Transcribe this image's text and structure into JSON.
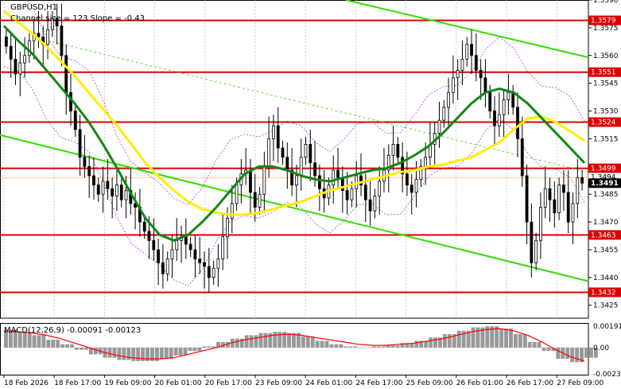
{
  "chart_data": {
    "type": "candlestick",
    "title": "GBPUSD,H1",
    "subtitle": "Channel size = 123 Slope = -0.43",
    "y_range": [
      1.3418,
      1.359
    ],
    "y_ticks": [
      1.359,
      1.3575,
      1.356,
      1.3545,
      1.353,
      1.3515,
      1.35,
      1.3485,
      1.347,
      1.3455,
      1.344,
      1.3425
    ],
    "x_labels": [
      "18 Feb 2026",
      "18 Feb 17:00",
      "19 Feb 09:00",
      "20 Feb 01:00",
      "20 Feb 17:00",
      "23 Feb 09:00",
      "24 Feb 01:00",
      "24 Feb 17:00",
      "25 Feb 09:00",
      "26 Feb 01:00",
      "26 Feb 17:00",
      "27 Feb 09:00"
    ],
    "levels": [
      {
        "price": 1.3579,
        "label": "1.3579"
      },
      {
        "price": 1.3551,
        "label": "1.3551"
      },
      {
        "price": 1.3524,
        "label": "1.3524"
      },
      {
        "price": 1.3499,
        "label": "1.3499"
      },
      {
        "price": 1.3463,
        "label": "1.3463"
      },
      {
        "price": 1.3432,
        "label": "1.3432"
      }
    ],
    "current_price": {
      "value": 1.3491,
      "label": "1.3491"
    },
    "ask_price": {
      "value": 1.3494,
      "label": "1.3494"
    },
    "candles_close": [
      1.3565,
      1.3558,
      1.355,
      1.3556,
      1.356,
      1.3568,
      1.3572,
      1.357,
      1.3566,
      1.3574,
      1.358,
      1.3576,
      1.356,
      1.354,
      1.353,
      1.352,
      1.3505,
      1.35,
      1.3495,
      1.349,
      1.3485,
      1.3492,
      1.3488,
      1.3484,
      1.349,
      1.3482,
      1.3487,
      1.348,
      1.3478,
      1.347,
      1.3465,
      1.346,
      1.3455,
      1.3448,
      1.3442,
      1.345,
      1.3455,
      1.346,
      1.3462,
      1.3458,
      1.3455,
      1.345,
      1.3448,
      1.3446,
      1.344,
      1.3445,
      1.345,
      1.3462,
      1.3472,
      1.348,
      1.349,
      1.3496,
      1.3498,
      1.3486,
      1.3478,
      1.3485,
      1.35,
      1.3515,
      1.3522,
      1.351,
      1.3505,
      1.3498,
      1.349,
      1.3495,
      1.3505,
      1.3512,
      1.3502,
      1.3495,
      1.3488,
      1.3483,
      1.349,
      1.3498,
      1.3494,
      1.3487,
      1.3482,
      1.3488,
      1.3495,
      1.349,
      1.3482,
      1.3476,
      1.3484,
      1.3492,
      1.3498,
      1.3506,
      1.3512,
      1.3505,
      1.3496,
      1.349,
      1.3486,
      1.3493,
      1.35,
      1.3505,
      1.3512,
      1.3518,
      1.3525,
      1.3532,
      1.354,
      1.3548,
      1.3552,
      1.3558,
      1.3566,
      1.356,
      1.3552,
      1.3548,
      1.354,
      1.353,
      1.3522,
      1.3528,
      1.3536,
      1.354,
      1.3532,
      1.3515,
      1.3495,
      1.347,
      1.3448,
      1.346,
      1.3478,
      1.3488,
      1.3482,
      1.3475,
      1.349,
      1.3486,
      1.347,
      1.348,
      1.3494,
      1.3491
    ],
    "sma_yellow": [
      1.3584,
      1.3578,
      1.3572,
      1.3565,
      1.3557,
      1.3549,
      1.354,
      1.3531,
      1.3522,
      1.3512,
      1.3502,
      1.3494,
      1.3487,
      1.3481,
      1.3477,
      1.3475,
      1.3474,
      1.3474,
      1.3475,
      1.3477,
      1.3479,
      1.3481,
      1.3484,
      1.3487,
      1.3489,
      1.3491,
      1.3493,
      1.3495,
      1.3497,
      1.3498,
      1.35,
      1.3501,
      1.3503,
      1.3505,
      1.3509,
      1.3513,
      1.352,
      1.3526,
      1.3527,
      1.3524,
      1.3519,
      1.3514
    ],
    "sma_green": [
      1.3576,
      1.3568,
      1.3561,
      1.3552,
      1.3543,
      1.3534,
      1.3524,
      1.3512,
      1.3499,
      1.3485,
      1.3472,
      1.3463,
      1.346,
      1.3463,
      1.347,
      1.3478,
      1.3487,
      1.3496,
      1.35,
      1.35,
      1.3498,
      1.3495,
      1.3493,
      1.3492,
      1.3494,
      1.3496,
      1.3498,
      1.3499,
      1.3502,
      1.3506,
      1.3511,
      1.3518,
      1.3526,
      1.3534,
      1.354,
      1.3542,
      1.354,
      1.3534,
      1.3526,
      1.3518,
      1.351,
      1.3502
    ],
    "macd": {
      "label": "MACD(12,26,9) -0.00091 -0.00123",
      "y_ticks": [
        "0.00191",
        "0.00",
        "-0.00234"
      ],
      "values": [
        0.0016,
        0.0014,
        0.0011,
        0.0007,
        0.0003,
        -0.0002,
        -0.0006,
        -0.0009,
        -0.0011,
        -0.0012,
        -0.0012,
        -0.001,
        -0.0007,
        -0.0003,
        0.0001,
        0.0005,
        0.0008,
        0.0011,
        0.0013,
        0.0014,
        0.0013,
        0.001,
        0.0006,
        0.0003,
        0.0001,
        0.0,
        0.0001,
        0.0002,
        0.0004,
        0.0006,
        0.0009,
        0.0012,
        0.0015,
        0.0018,
        0.0019,
        0.0017,
        0.0012,
        0.0005,
        -0.0003,
        -0.001,
        -0.0013,
        -0.0009
      ],
      "signal": [
        0.0014,
        0.0014,
        0.0013,
        0.0011,
        0.0008,
        0.0004,
        0.0,
        -0.0004,
        -0.0007,
        -0.0009,
        -0.001,
        -0.001,
        -0.0009,
        -0.0006,
        -0.0003,
        0.0,
        0.0004,
        0.0007,
        0.0009,
        0.0011,
        0.0012,
        0.0011,
        0.0009,
        0.0007,
        0.0005,
        0.0003,
        0.0002,
        0.0002,
        0.0003,
        0.0004,
        0.0006,
        0.0008,
        0.0011,
        0.0014,
        0.0016,
        0.0017,
        0.0015,
        0.0011,
        0.0005,
        -0.0002,
        -0.0008,
        -0.0012
      ]
    },
    "colors": {
      "level": "#e00000",
      "channel": "#33dd00",
      "sma_yellow": "#ffee00",
      "sma_green": "#118811",
      "envelope": "#b23cd6",
      "candle": "#000000",
      "macd_hist": "#999999",
      "macd_signal": "#ff0000",
      "price_tag": "#000000"
    }
  }
}
